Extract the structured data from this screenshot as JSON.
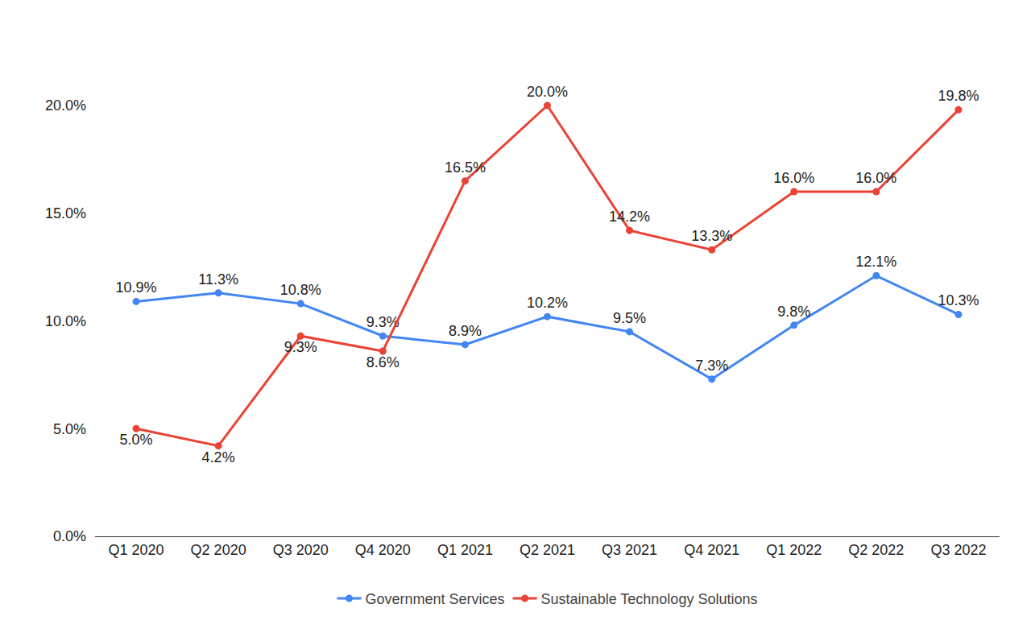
{
  "chart_data": {
    "type": "line",
    "categories": [
      "Q1 2020",
      "Q2 2020",
      "Q3 2020",
      "Q4 2020",
      "Q1 2021",
      "Q2 2021",
      "Q3 2021",
      "Q4 2021",
      "Q1 2022",
      "Q2 2022",
      "Q3 2022"
    ],
    "series": [
      {
        "name": "Government Services",
        "color": "#4285f4",
        "marker": "circle",
        "line_style": "solid",
        "values": [
          10.9,
          11.3,
          10.8,
          9.3,
          8.9,
          10.2,
          9.5,
          7.3,
          9.8,
          12.1,
          10.3
        ],
        "value_labels": [
          "10.9%",
          "11.3%",
          "10.8%",
          "9.3%",
          "8.9%",
          "10.2%",
          "9.5%",
          "7.3%",
          "9.8%",
          "12.1%",
          "10.3%"
        ]
      },
      {
        "name": "Sustainable Technology Solutions",
        "color": "#ea4335",
        "marker": "circle",
        "line_style": "solid",
        "values": [
          5.0,
          4.2,
          9.3,
          8.6,
          16.5,
          20.0,
          14.2,
          13.3,
          16.0,
          16.0,
          19.8
        ],
        "value_labels": [
          "5.0%",
          "4.2%",
          "9.3%",
          "8.6%",
          "16.5%",
          "20.0%",
          "14.2%",
          "13.3%",
          "16.0%",
          "16.0%",
          "19.8%"
        ]
      }
    ],
    "ylim": [
      0,
      20
    ],
    "yticks": [
      {
        "value": 0,
        "label": "0.0%"
      },
      {
        "value": 5,
        "label": "5.0%"
      },
      {
        "value": 10,
        "label": "10.0%"
      },
      {
        "value": 15,
        "label": "15.0%"
      },
      {
        "value": 20,
        "label": "20.0%"
      }
    ],
    "grid": false,
    "legend": "bottom",
    "data_labels": true
  }
}
